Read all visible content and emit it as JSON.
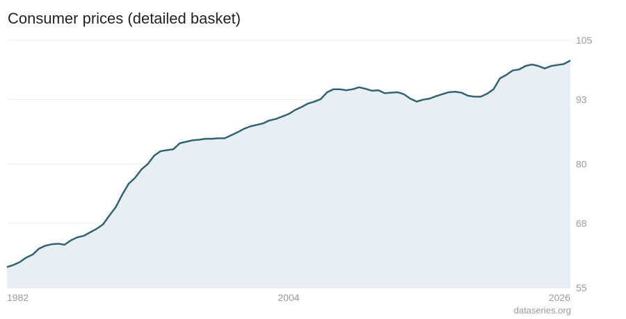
{
  "chart_data": {
    "type": "area",
    "title": "Consumer prices (detailed basket)",
    "xlabel": "",
    "ylabel": "",
    "xlim": [
      1982,
      2026
    ],
    "ylim": [
      55,
      105
    ],
    "x_ticks": [
      "1982",
      "2004",
      "2026"
    ],
    "y_ticks": [
      55,
      68,
      80,
      93,
      105
    ],
    "grid": true,
    "y_axis_side": "right",
    "line_color": "#2e6471",
    "fill_color": "#e8eef1",
    "series": [
      {
        "x": [
          1982.0,
          1982.5,
          1983.0,
          1983.5,
          1984.0,
          1984.5,
          1985.0,
          1985.5,
          1986.0,
          1986.5,
          1987.0,
          1987.5,
          1988.0,
          1988.5,
          1989.0,
          1989.5,
          1990.0,
          1990.5,
          1991.0,
          1991.5,
          1992.0,
          1992.5,
          1993.0,
          1993.5,
          1994.0,
          1994.5,
          1995.0,
          1995.5,
          1996.0,
          1996.5,
          1997.0,
          1997.5,
          1998.0,
          1998.5,
          1999.0,
          1999.5,
          2000.0,
          2000.5,
          2001.0,
          2001.5,
          2002.0,
          2002.5,
          2003.0,
          2003.5,
          2004.0,
          2004.5,
          2005.0,
          2005.5,
          2006.0,
          2006.5,
          2007.0,
          2007.5,
          2008.0,
          2008.5,
          2009.0,
          2009.5,
          2010.0,
          2010.5,
          2011.0,
          2011.5,
          2012.0,
          2012.5,
          2013.0,
          2013.5,
          2014.0,
          2014.5,
          2015.0,
          2015.5,
          2016.0,
          2016.5,
          2017.0,
          2017.5,
          2018.0,
          2018.5,
          2019.0,
          2019.5,
          2020.0,
          2020.5,
          2021.0,
          2021.5,
          2022.0,
          2022.5,
          2023.0,
          2023.5,
          2024.0,
          2024.5,
          2025.0,
          2025.5,
          2026.0
        ],
        "y": [
          59.2,
          59.6,
          60.2,
          61.1,
          61.7,
          62.9,
          63.5,
          63.8,
          63.9,
          63.7,
          64.6,
          65.2,
          65.5,
          66.2,
          66.9,
          67.8,
          69.6,
          71.3,
          73.8,
          76.0,
          77.2,
          78.9,
          80.0,
          81.7,
          82.6,
          82.8,
          83.0,
          84.2,
          84.5,
          84.8,
          84.9,
          85.1,
          85.1,
          85.2,
          85.2,
          85.8,
          86.4,
          87.1,
          87.6,
          87.9,
          88.2,
          88.8,
          89.1,
          89.6,
          90.1,
          90.9,
          91.5,
          92.2,
          92.6,
          93.1,
          94.5,
          95.1,
          95.1,
          94.9,
          95.1,
          95.5,
          95.2,
          94.8,
          94.9,
          94.3,
          94.4,
          94.5,
          94.1,
          93.2,
          92.6,
          93.0,
          93.2,
          93.7,
          94.1,
          94.5,
          94.6,
          94.4,
          93.8,
          93.6,
          93.6,
          94.2,
          95.1,
          97.3,
          98.0,
          98.9,
          99.1,
          99.8,
          100.1,
          99.8,
          99.3,
          99.8,
          100.0,
          100.2,
          100.9
        ]
      }
    ]
  },
  "source": "dataseries.org"
}
